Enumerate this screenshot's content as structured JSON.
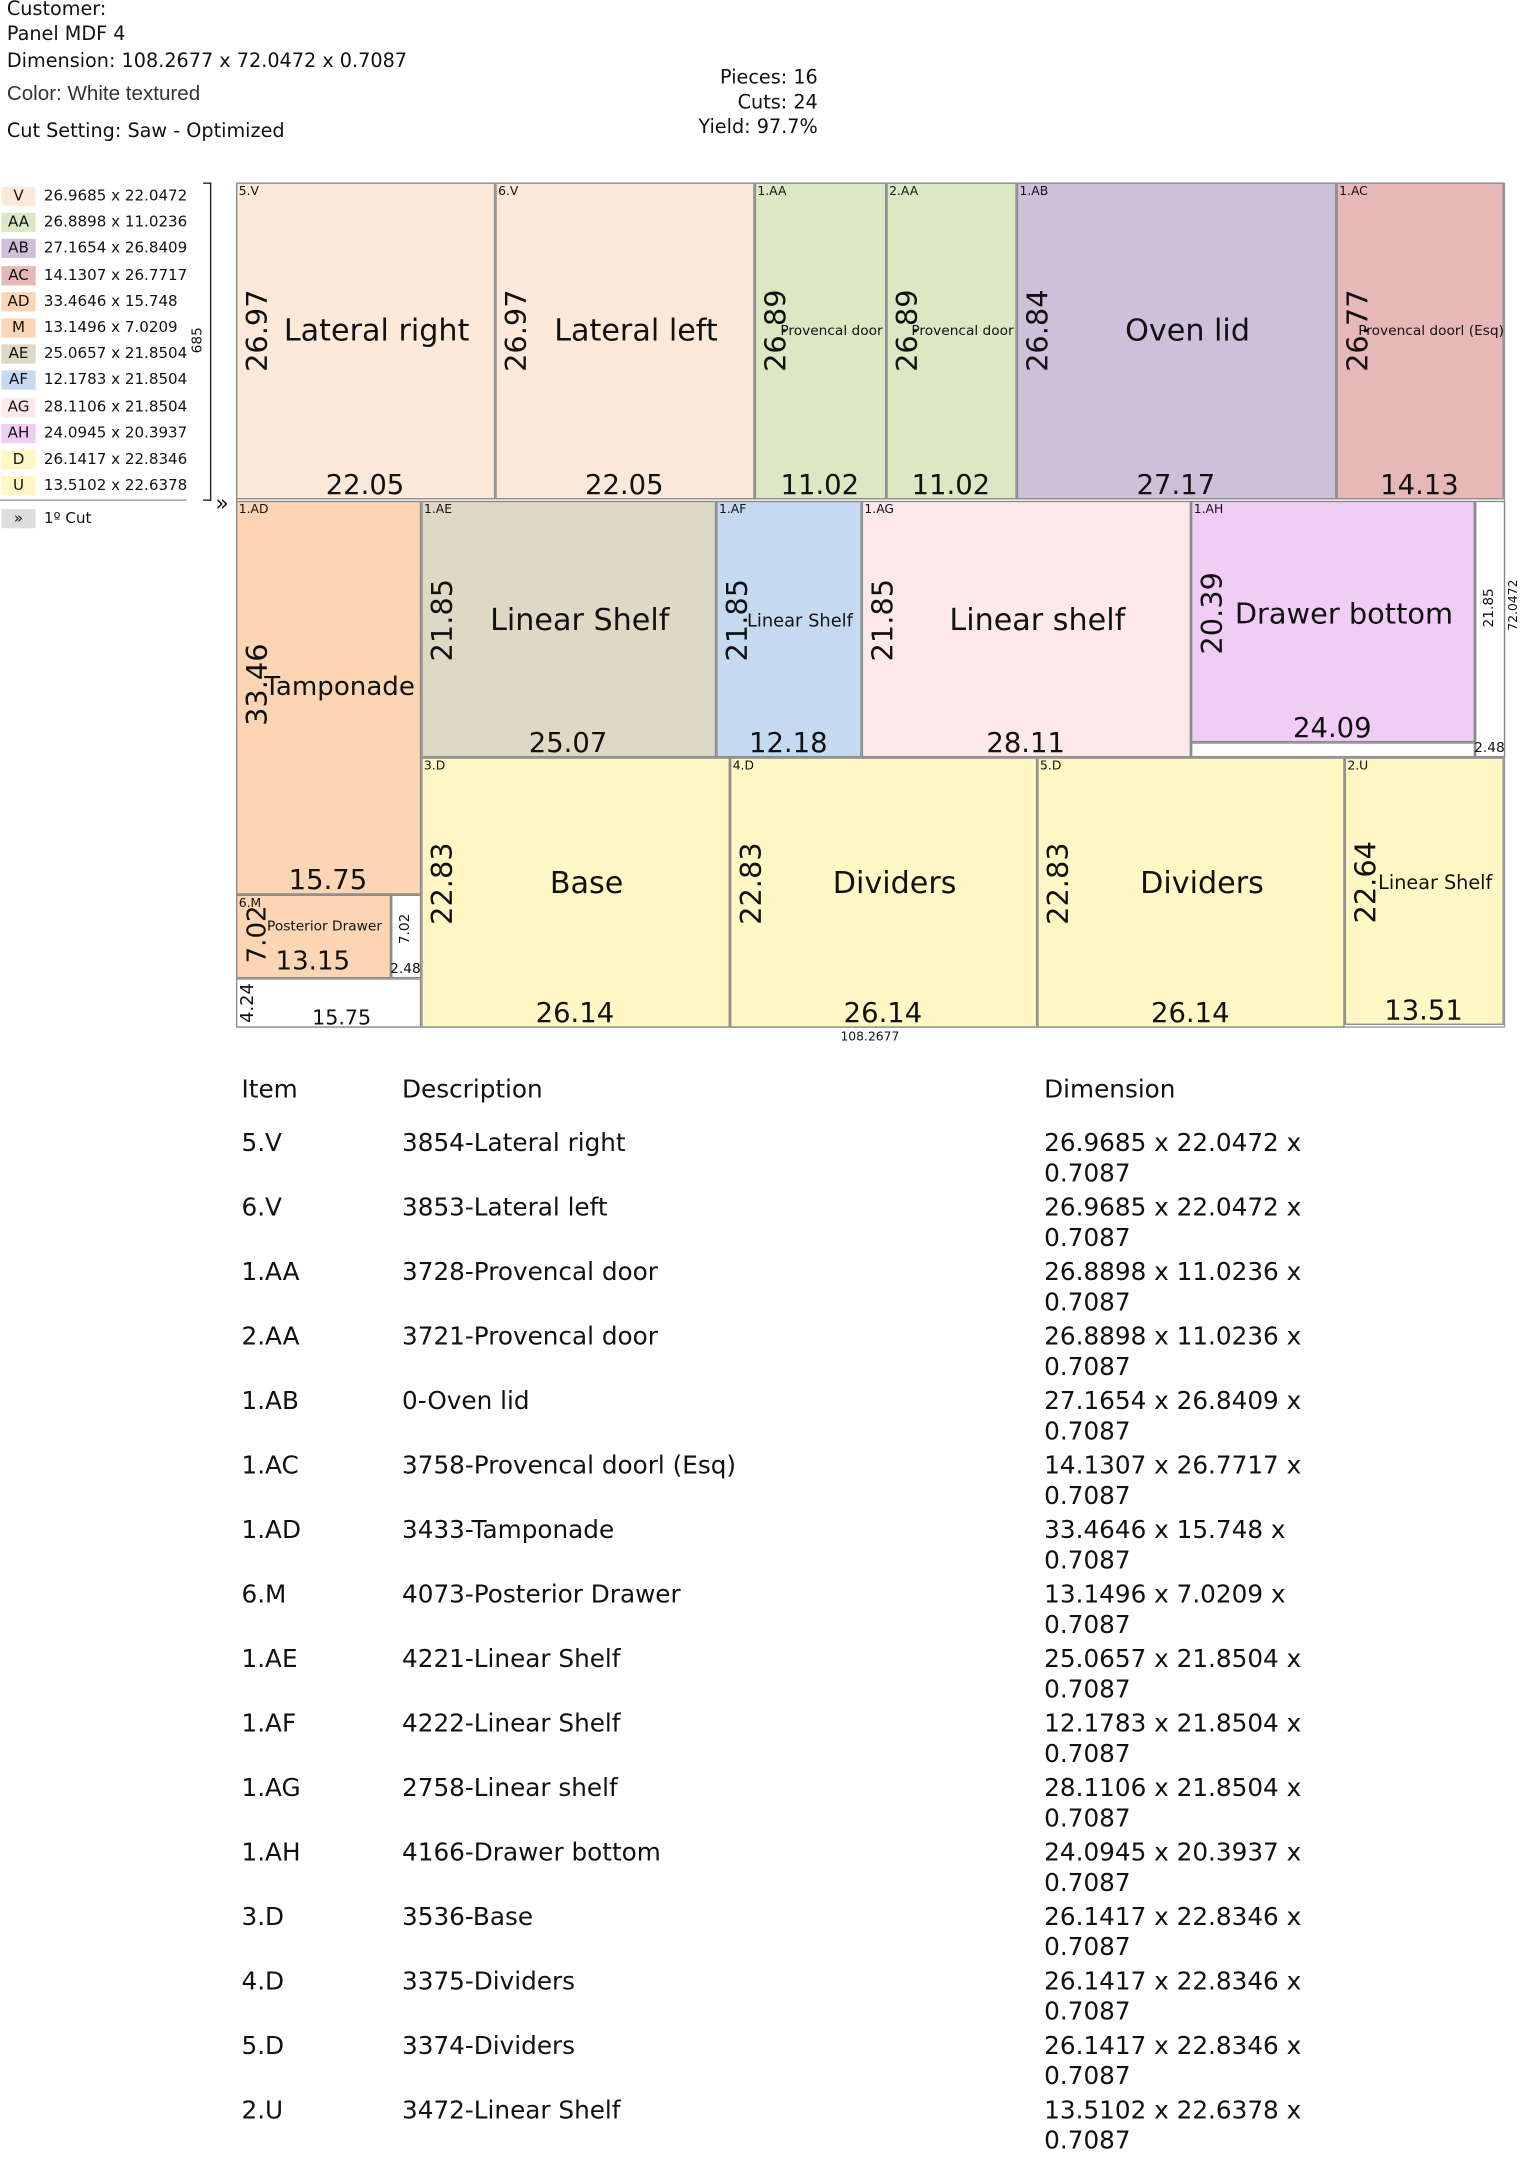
{
  "header": {
    "customer": "Customer:",
    "panel": "Panel  MDF  4",
    "dimension": "Dimension: 108.2677 x 72.0472 x 0.7087",
    "color": "Color: White textured",
    "cut_setting": "Cut Setting: Saw - Optimized",
    "pieces": "Pieces: 16",
    "cuts": "Cuts: 24",
    "yield": "Yield: 97.7%"
  },
  "legend": [
    {
      "code": "V",
      "size": "26.9685 x 22.0472",
      "color": "#fde9d9"
    },
    {
      "code": "AA",
      "size": "26.8898 x 11.0236",
      "color": "#dbe8c4"
    },
    {
      "code": "AB",
      "size": "27.1654 x 26.8409",
      "color": "#ccc0da"
    },
    {
      "code": "AC",
      "size": "14.1307 x 26.7717",
      "color": "#e6b8b7"
    },
    {
      "code": "AD",
      "size": "33.4646 x 15.748",
      "color": "#fcd5b4"
    },
    {
      "code": "M",
      "size": "13.1496 x 7.0209",
      "color": "#fcd5b4"
    },
    {
      "code": "AE",
      "size": "25.0657 x 21.8504",
      "color": "#ddd9c4"
    },
    {
      "code": "AF",
      "size": "12.1783 x 21.8504",
      "color": "#c5d9f1"
    },
    {
      "code": "AG",
      "size": "28.1106 x 21.8504",
      "color": "#fde9e9"
    },
    {
      "code": "AH",
      "size": "24.0945 x 20.3937",
      "color": "#f0cdf5"
    },
    {
      "code": "D",
      "size": "26.1417 x 22.8346",
      "color": "#fff7c4"
    },
    {
      "code": "U",
      "size": "13.5102 x 22.6378",
      "color": "#fff7c4"
    }
  ],
  "cut_marker": {
    "symbol": "»",
    "label": "1º Cut"
  },
  "board": {
    "height_label": "685",
    "right_label": "72.0472",
    "bottom_label": "108.2677",
    "pieces": [
      {
        "item": "5.V",
        "name": "Lateral right",
        "height": "26.97",
        "width": "22.05"
      },
      {
        "item": "6.V",
        "name": "Lateral left",
        "height": "26.97",
        "width": "22.05"
      },
      {
        "item": "1.AA",
        "name": "Provencal door",
        "height": "26.89",
        "width": "11.02"
      },
      {
        "item": "2.AA",
        "name": "Provencal door",
        "height": "26.89",
        "width": "11.02"
      },
      {
        "item": "1.AB",
        "name": "Oven lid",
        "height": "26.84",
        "width": "27.17"
      },
      {
        "item": "1.AC",
        "name": "Provencal doorl (Esq)",
        "height": "26.77",
        "width": "14.13"
      },
      {
        "item": "1.AD",
        "name": "Tamponade",
        "height": "33.46",
        "width": "15.75"
      },
      {
        "item": "6.M",
        "name": "Posterior Drawer",
        "height": "7.02",
        "width": "13.15"
      },
      {
        "item": "1.AE",
        "name": "Linear Shelf",
        "height": "21.85",
        "width": "25.07"
      },
      {
        "item": "1.AF",
        "name": "Linear Shelf",
        "height": "21.85",
        "width": "12.18"
      },
      {
        "item": "1.AG",
        "name": "Linear shelf",
        "height": "21.85",
        "width": "28.11"
      },
      {
        "item": "1.AH",
        "name": "Drawer bottom",
        "height": "20.39",
        "width": "24.09"
      },
      {
        "item": "3.D",
        "name": "Base",
        "height": "22.83",
        "width": "26.14"
      },
      {
        "item": "4.D",
        "name": "Dividers",
        "height": "22.83",
        "width": "26.14"
      },
      {
        "item": "5.D",
        "name": "Dividers",
        "height": "22.83",
        "width": "26.14"
      },
      {
        "item": "2.U",
        "name": "Linear Shelf",
        "height": "22.64",
        "width": "13.51"
      }
    ],
    "offcuts": [
      {
        "height": "7.02",
        "width": "2.48"
      },
      {
        "height": "4.24",
        "width": "15.75"
      },
      {
        "height": "21.85",
        "width": "2.48"
      }
    ]
  },
  "table": {
    "columns": [
      "Item",
      "Description",
      "Dimension"
    ],
    "rows": [
      [
        "5.V",
        "3854-Lateral right",
        "26.9685 x 22.0472 x 0.7087"
      ],
      [
        "6.V",
        "3853-Lateral left",
        "26.9685 x 22.0472 x 0.7087"
      ],
      [
        "1.AA",
        "3728-Provencal door",
        "26.8898 x 11.0236 x 0.7087"
      ],
      [
        "2.AA",
        "3721-Provencal door",
        "26.8898 x 11.0236 x 0.7087"
      ],
      [
        "1.AB",
        "0-Oven lid",
        "27.1654 x 26.8409 x 0.7087"
      ],
      [
        "1.AC",
        "3758-Provencal doorl (Esq)",
        "14.1307 x 26.7717 x 0.7087"
      ],
      [
        "1.AD",
        "3433-Tamponade",
        "33.4646 x 15.748 x 0.7087"
      ],
      [
        "6.M",
        "4073-Posterior Drawer",
        "13.1496 x 7.0209 x 0.7087"
      ],
      [
        "1.AE",
        "4221-Linear Shelf",
        "25.0657 x 21.8504 x 0.7087"
      ],
      [
        "1.AF",
        "4222-Linear Shelf",
        "12.1783 x 21.8504 x 0.7087"
      ],
      [
        "1.AG",
        "2758-Linear shelf",
        "28.1106 x 21.8504 x 0.7087"
      ],
      [
        "1.AH",
        "4166-Drawer bottom",
        "24.0945 x 20.3937 x 0.7087"
      ],
      [
        "3.D",
        "3536-Base",
        "26.1417 x 22.8346 x 0.7087"
      ],
      [
        "4.D",
        "3375-Dividers",
        "26.1417 x 22.8346 x 0.7087"
      ],
      [
        "5.D",
        "3374-Dividers",
        "26.1417 x 22.8346 x 0.7087"
      ],
      [
        "2.U",
        "3472-Linear Shelf",
        "13.5102 x 22.6378 x 0.7087"
      ]
    ]
  }
}
